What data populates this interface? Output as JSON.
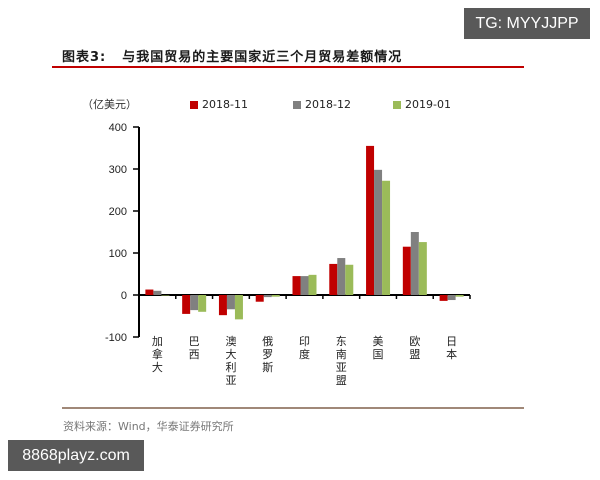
{
  "figure": {
    "title_number": "图表3:",
    "title_text": "与我国贸易的主要国家近三个月贸易差额情况",
    "unit": "（亿美元）",
    "source": "资料来源：Wind，华泰证券研究所"
  },
  "watermarks": {
    "top_right": "TG: MYYJJPP",
    "bottom_left": "8868playz.com"
  },
  "colors": {
    "title_rule": "#c00000",
    "source_rule": "#a08878",
    "series_2018_11": "#c00000",
    "series_2018_12": "#808080",
    "series_2019_01": "#9bbb59"
  },
  "chart_data": {
    "type": "bar",
    "title": "与我国贸易的主要国家近三个月贸易差额情况",
    "xlabel": "",
    "ylabel": "亿美元",
    "ylim": [
      -100,
      400
    ],
    "yticks": [
      -100,
      0,
      100,
      200,
      300,
      400
    ],
    "grid": false,
    "legend_position": "top",
    "categories": [
      "加拿大",
      "巴西",
      "澳大利亚",
      "俄罗斯",
      "印度",
      "东南亚盟",
      "美国",
      "欧盟",
      "日本"
    ],
    "series": [
      {
        "name": "2018-11",
        "color": "#c00000",
        "values": [
          13,
          -45,
          -48,
          -16,
          45,
          74,
          355,
          115,
          -14
        ]
      },
      {
        "name": "2018-12",
        "color": "#808080",
        "values": [
          10,
          -36,
          -34,
          -5,
          45,
          88,
          298,
          150,
          -12
        ]
      },
      {
        "name": "2019-01",
        "color": "#9bbb59",
        "values": [
          0,
          -40,
          -58,
          -4,
          48,
          72,
          272,
          126,
          -4
        ]
      }
    ]
  }
}
